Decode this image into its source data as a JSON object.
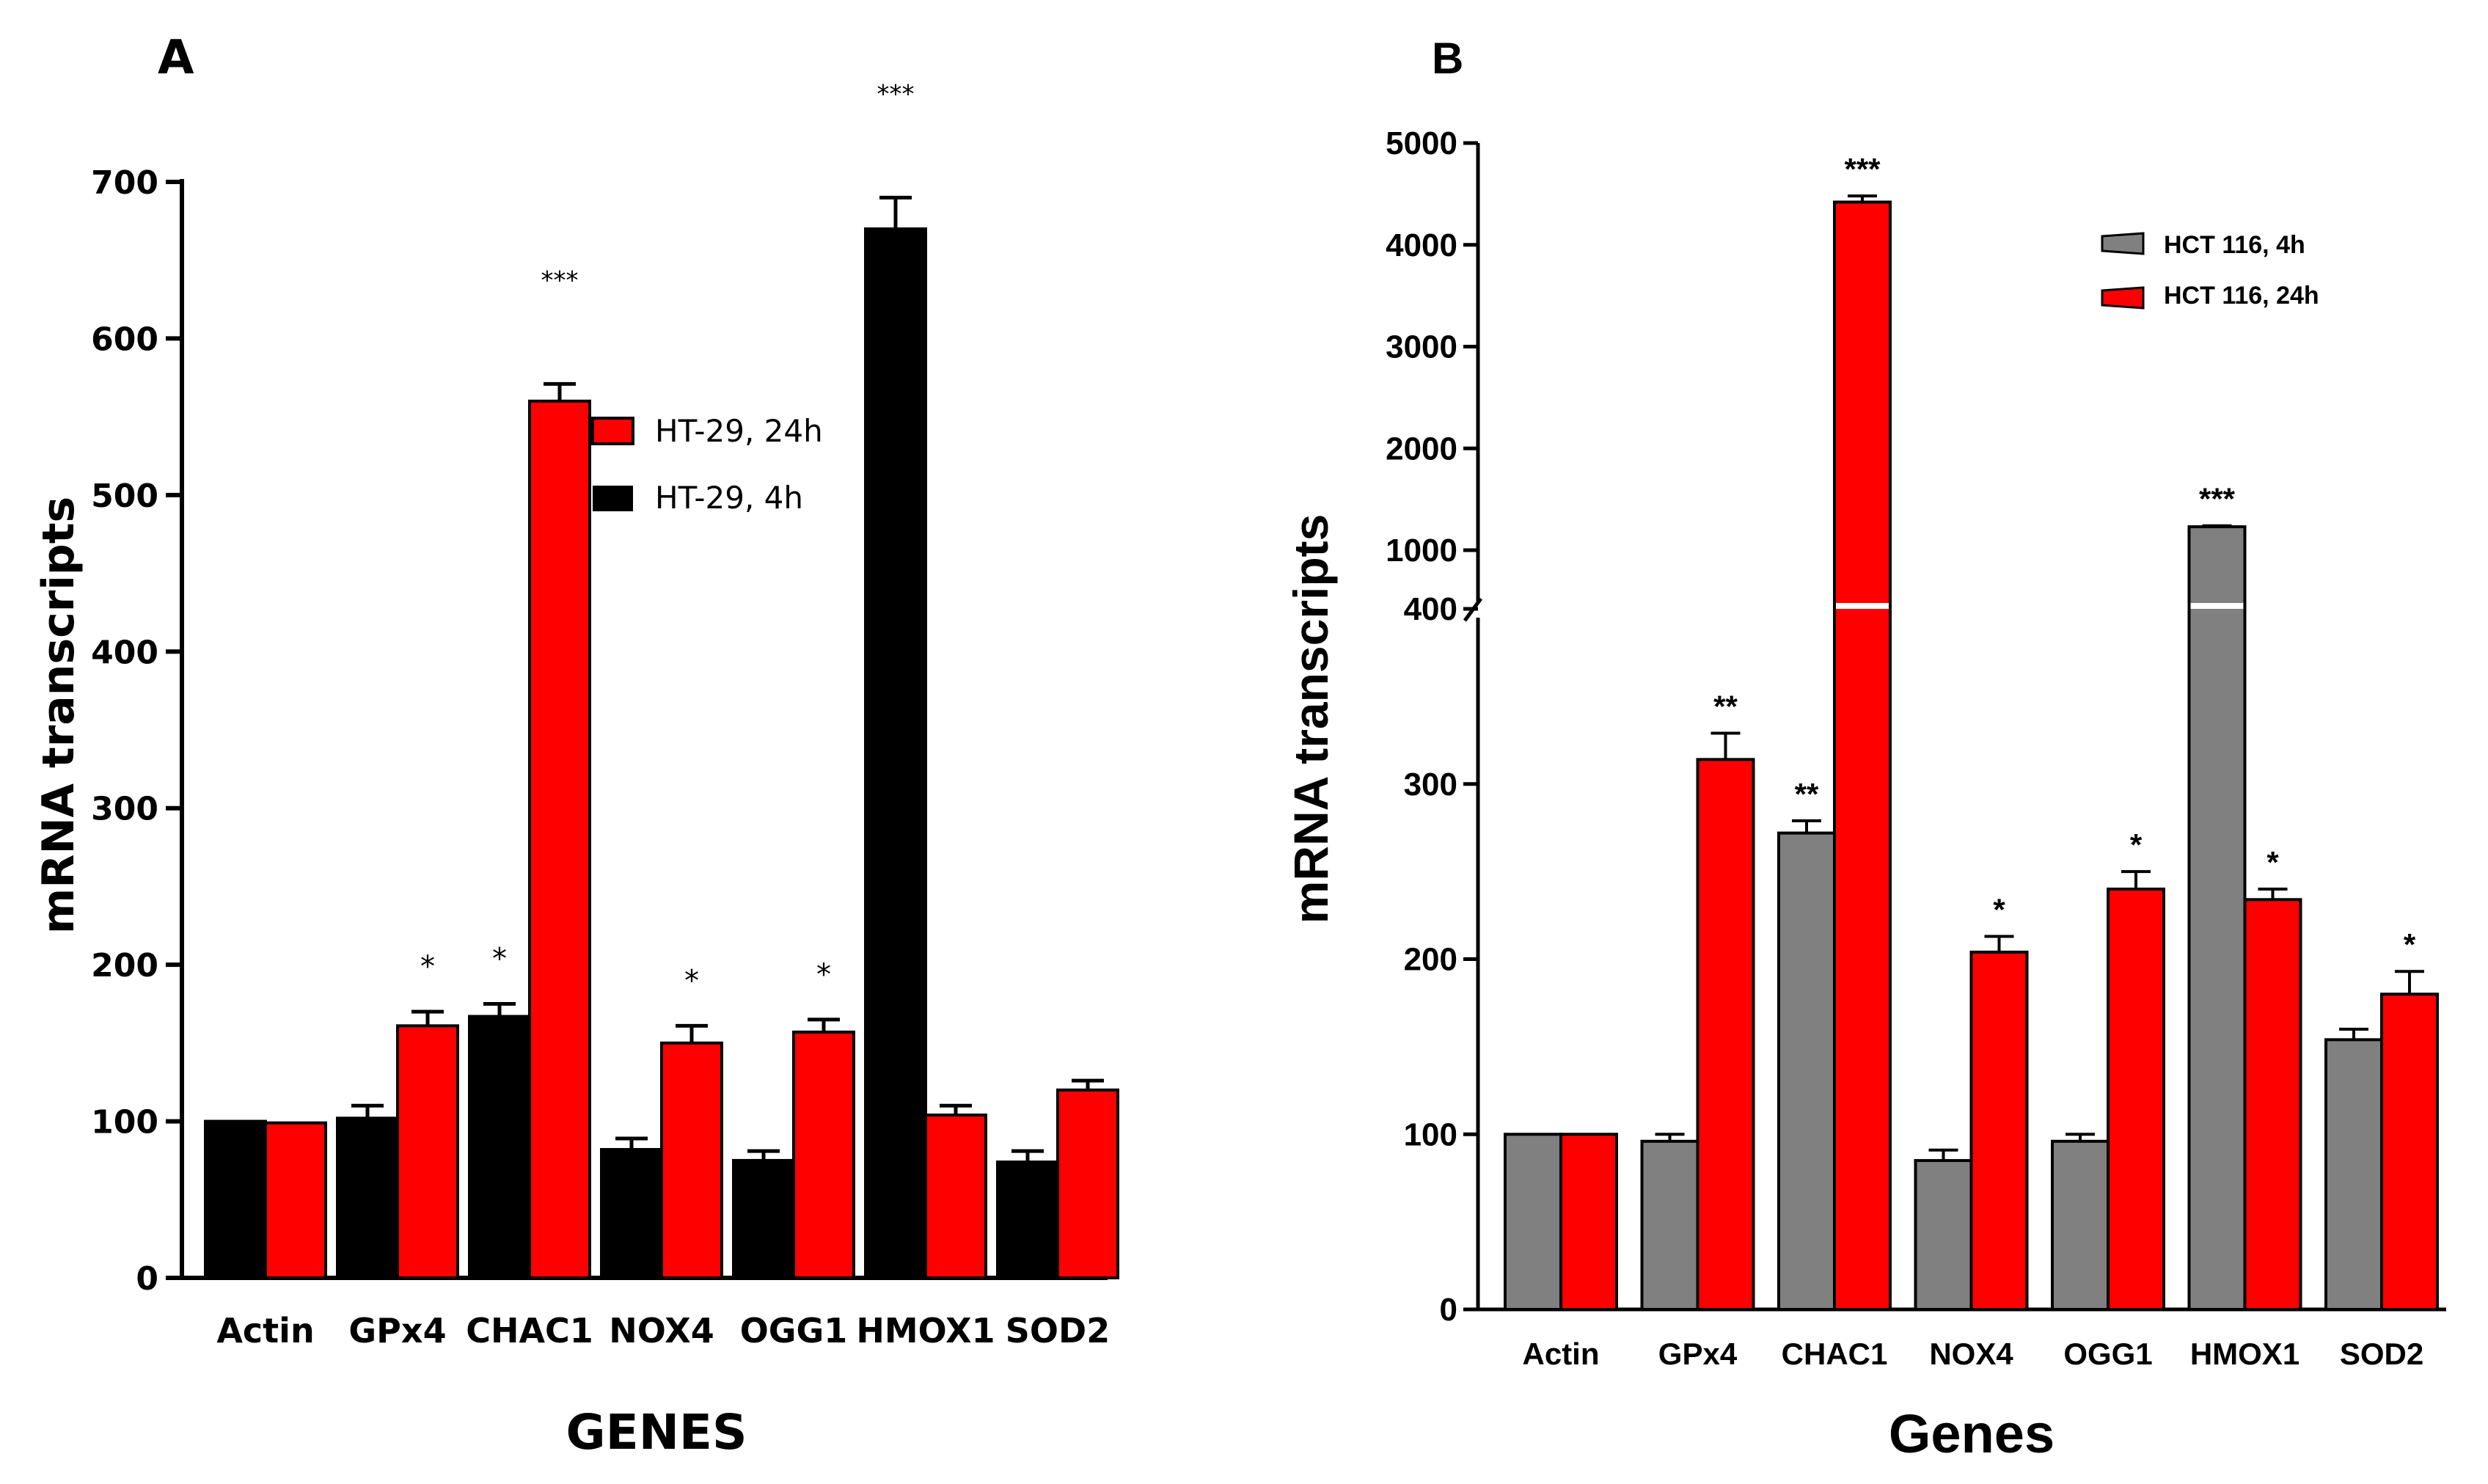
{
  "chart_data": [
    {
      "panel_label": "A",
      "type": "bar",
      "xlabel": "GENES",
      "ylabel": "mRNA transcripts",
      "ylim": [
        0,
        700
      ],
      "yticks": [
        "0",
        "100",
        "200",
        "300",
        "400",
        "500",
        "600",
        "700"
      ],
      "categories": [
        "Actin",
        "GPx4",
        "CHAC1",
        "NOX4",
        "OGG1",
        "HMOX1",
        "SOD2"
      ],
      "series": [
        {
          "name": "HT-29, 4h",
          "color": "#000000",
          "values": [
            100,
            102,
            167,
            82,
            75,
            670,
            74
          ],
          "errors": [
            0,
            8,
            8,
            7,
            6,
            20,
            7
          ],
          "sig": [
            "",
            "",
            "*",
            "",
            "",
            "***",
            ""
          ]
        },
        {
          "name": "HT-29, 24h",
          "color": "#ff0000",
          "values": [
            99,
            161,
            560,
            150,
            157,
            104,
            120
          ],
          "errors": [
            0,
            9,
            11,
            11,
            8,
            6,
            6
          ],
          "sig": [
            "",
            "*",
            "***",
            "*",
            "*",
            "",
            ""
          ]
        }
      ],
      "legend": [
        {
          "label": "HT-29, 24h",
          "color": "#ff0000"
        },
        {
          "label": "HT-29, 4h",
          "color": "#000000"
        }
      ],
      "legend_position": "top-center"
    },
    {
      "panel_label": "B",
      "type": "bar",
      "xlabel": "Genes",
      "ylabel": "mRNA transcripts",
      "axis_break": {
        "lower_range": [
          0,
          400
        ],
        "upper_range": [
          400,
          5000
        ]
      },
      "yticks": [
        "0",
        "100",
        "200",
        "300",
        "400",
        "1000",
        "2000",
        "3000",
        "4000",
        "5000"
      ],
      "categories": [
        "Actin",
        "GPx4",
        "CHAC1",
        "NOX4",
        "OGG1",
        "HMOX1",
        "SOD2"
      ],
      "series": [
        {
          "name": "HCT 116, 4h",
          "color": "#808080",
          "values": [
            100,
            96,
            272,
            85,
            96,
            1230,
            154
          ],
          "errors": [
            0,
            4,
            7,
            6,
            4,
            10,
            6
          ],
          "sig": [
            "",
            "",
            "**",
            "",
            "",
            "***",
            ""
          ]
        },
        {
          "name": "HCT 116, 24h",
          "color": "#ff0000",
          "values": [
            100,
            314,
            4420,
            204,
            240,
            234,
            180
          ],
          "errors": [
            0,
            15,
            60,
            9,
            10,
            6,
            13
          ],
          "sig": [
            "",
            "**",
            "***",
            "*",
            "*",
            "*",
            "*"
          ]
        }
      ],
      "legend": [
        {
          "label": "HCT 116, 4h",
          "color": "#808080"
        },
        {
          "label": "HCT 116, 24h",
          "color": "#ff0000"
        }
      ],
      "legend_position": "top-right"
    }
  ]
}
